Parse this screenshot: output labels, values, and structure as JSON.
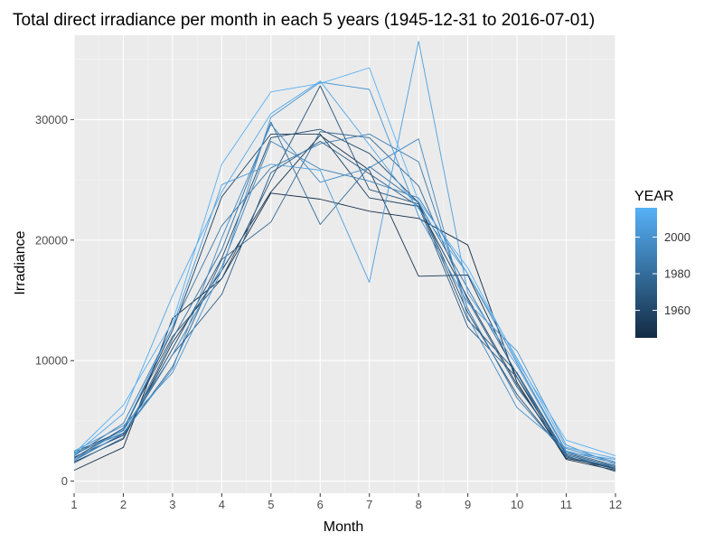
{
  "chart_data": {
    "type": "line",
    "title": "Total direct irradiance per month in each 5 years (1945-12-31 to 2016-07-01)",
    "xlabel": "Month",
    "ylabel": "Irradiance",
    "x": [
      1,
      2,
      3,
      4,
      5,
      6,
      7,
      8,
      9,
      10,
      11,
      12
    ],
    "xlim": [
      1,
      12
    ],
    "ylim": [
      -1000,
      37000
    ],
    "x_ticks": [
      "1",
      "2",
      "3",
      "4",
      "5",
      "6",
      "7",
      "8",
      "9",
      "10",
      "11",
      "12"
    ],
    "y_ticks": [
      0,
      10000,
      20000,
      30000
    ],
    "y_tick_labels": [
      "0",
      "10000",
      "20000",
      "30000"
    ],
    "grid": true,
    "legend": {
      "title": "YEAR",
      "position": "right",
      "type": "colorbar",
      "range": [
        1945,
        2016
      ],
      "ticks": [
        1960,
        1980,
        2000
      ],
      "tick_labels": [
        "1960",
        "1980",
        "2000"
      ],
      "low_color": "#132B43",
      "high_color": "#56B1F7"
    },
    "series": [
      {
        "year": 1946,
        "values": [
          900,
          2800,
          13500,
          16800,
          23900,
          23400,
          22400,
          21800,
          19600,
          8200,
          1800,
          900
        ]
      },
      {
        "year": 1951,
        "values": [
          1600,
          3500,
          11500,
          17500,
          24000,
          28700,
          25800,
          17000,
          17100,
          8600,
          1900,
          1100
        ]
      },
      {
        "year": 1956,
        "values": [
          2400,
          4200,
          12500,
          23600,
          28800,
          28800,
          23500,
          22800,
          15200,
          8000,
          2000,
          1000
        ]
      },
      {
        "year": 1961,
        "values": [
          2000,
          3800,
          11000,
          18500,
          28500,
          29200,
          27200,
          23100,
          14000,
          7200,
          2100,
          800
        ]
      },
      {
        "year": 1966,
        "values": [
          1900,
          4400,
          12000,
          16800,
          25000,
          32800,
          24200,
          23000,
          13400,
          9000,
          2200,
          1000
        ]
      },
      {
        "year": 1971,
        "values": [
          1800,
          3900,
          10500,
          15500,
          25600,
          28200,
          25500,
          22800,
          12800,
          8600,
          2300,
          1200
        ]
      },
      {
        "year": 1976,
        "values": [
          2300,
          4000,
          9500,
          18400,
          21500,
          29000,
          28500,
          24500,
          15000,
          7800,
          2400,
          1300
        ]
      },
      {
        "year": 1981,
        "values": [
          1500,
          3600,
          11800,
          19200,
          29800,
          21300,
          26100,
          23100,
          16000,
          8900,
          2000,
          1200
        ]
      },
      {
        "year": 1986,
        "values": [
          2100,
          4800,
          12800,
          21200,
          26000,
          28000,
          28800,
          26500,
          14300,
          6900,
          2200,
          1100
        ]
      },
      {
        "year": 1991,
        "values": [
          2200,
          4200,
          10500,
          17800,
          28200,
          25900,
          24900,
          23500,
          17200,
          9800,
          2500,
          1500
        ]
      },
      {
        "year": 1996,
        "values": [
          1700,
          4000,
          9300,
          20200,
          29600,
          24800,
          26000,
          28400,
          13600,
          6100,
          2700,
          1600
        ]
      },
      {
        "year": 2001,
        "values": [
          2500,
          4600,
          9000,
          17500,
          30200,
          33100,
          32500,
          22000,
          14800,
          10800,
          3000,
          1400
        ]
      },
      {
        "year": 2006,
        "values": [
          1800,
          4300,
          12800,
          24600,
          26300,
          25800,
          16500,
          36500,
          15600,
          9600,
          2400,
          1800
        ]
      },
      {
        "year": 2011,
        "values": [
          2200,
          5600,
          15400,
          24000,
          30500,
          33200,
          27900,
          22600,
          17200,
          10200,
          2800,
          1900
        ]
      },
      {
        "year": 2016,
        "values": [
          2300,
          6300,
          13200,
          26300,
          32300,
          33000,
          34300,
          23200,
          17700,
          10000,
          3400,
          2100
        ]
      }
    ]
  }
}
